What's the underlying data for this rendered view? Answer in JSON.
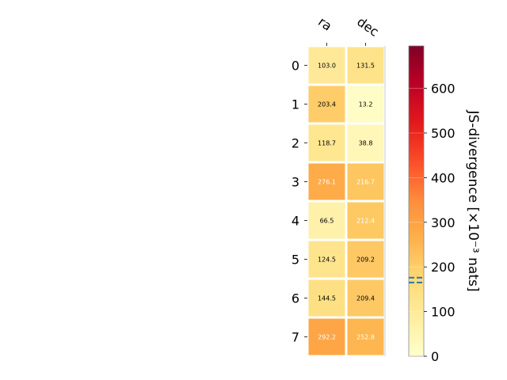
{
  "chart_data": {
    "type": "heatmap",
    "columns": [
      "ra",
      "dec"
    ],
    "rows": [
      "0",
      "1",
      "2",
      "3",
      "4",
      "5",
      "6",
      "7"
    ],
    "values": [
      [
        103.0,
        131.5
      ],
      [
        203.4,
        13.2
      ],
      [
        118.7,
        38.8
      ],
      [
        276.1,
        216.7
      ],
      [
        66.5,
        212.4
      ],
      [
        124.5,
        209.2
      ],
      [
        144.5,
        209.4
      ],
      [
        292.2,
        252.8
      ]
    ],
    "colorbar": {
      "label": "JS-divergence [×10⁻³ nats]",
      "range": [
        0,
        695
      ],
      "ticks": [
        0,
        100,
        200,
        300,
        400,
        500,
        600
      ],
      "colormap": "YlOrRd",
      "reference_lines": [
        165,
        176
      ]
    }
  }
}
